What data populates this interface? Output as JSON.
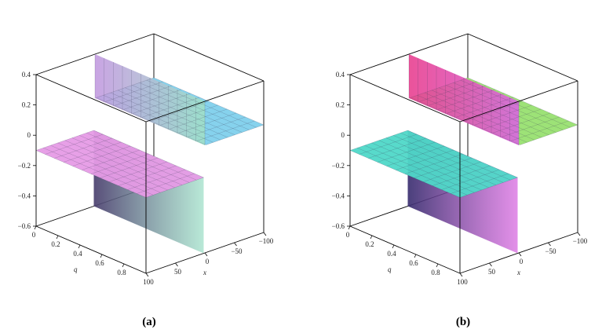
{
  "chart_data": [
    {
      "type": "surface",
      "caption": "(a)",
      "q_axis": {
        "label": "q",
        "range": [
          0,
          1
        ],
        "ticks": [
          "0",
          "0.2",
          "0.4",
          "0.6",
          "0.8"
        ]
      },
      "x_axis": {
        "label": "x",
        "range": [
          -100,
          100
        ],
        "ticks": [
          "100",
          "50",
          "0",
          "−50",
          "−100"
        ]
      },
      "z_axis": {
        "range": [
          -0.6,
          0.4
        ],
        "ticks": [
          "0.4",
          "0.2",
          "0",
          "−0.2",
          "−0.4",
          "−0.6"
        ]
      },
      "surface": {
        "shape": "step (kink) profile in x, constant in q",
        "low_plateau": -0.1,
        "high_plateau": 0.11,
        "trough": -0.6,
        "peak": 0.4,
        "front_x": 0
      },
      "colors": {
        "low_plateau": "#e69be6",
        "wall_left": "#c39ae0",
        "wall_right": "#9fe0c8",
        "high_plateau": "#7fd0ec",
        "underside": "#4a3f6e"
      }
    },
    {
      "type": "surface",
      "caption": "(b)",
      "q_axis": {
        "label": "q",
        "range": [
          0,
          1
        ],
        "ticks": [
          "0",
          "0.2",
          "0.4",
          "0.6",
          "0.8"
        ]
      },
      "x_axis": {
        "label": "x",
        "range": [
          -100,
          100
        ],
        "ticks": [
          "100",
          "50",
          "0",
          "−50",
          "−100"
        ]
      },
      "z_axis": {
        "range": [
          -0.6,
          0.4
        ],
        "ticks": [
          "0.4",
          "0.2",
          "0",
          "−0.2",
          "−0.4",
          "−0.6"
        ]
      },
      "surface": {
        "shape": "step (kink) profile in x, constant in q",
        "low_plateau": -0.1,
        "high_plateau": 0.11,
        "trough": -0.6,
        "peak": 0.4,
        "front_x": 0
      },
      "colors": {
        "low_plateau": "#4fd8c8",
        "wall_left": "#e8408f",
        "wall_right": "#d868e0",
        "high_plateau": "#98e070",
        "underside": "#3a2f70"
      }
    }
  ]
}
